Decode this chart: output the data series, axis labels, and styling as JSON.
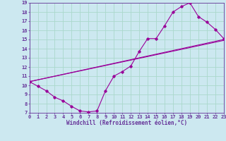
{
  "xlabel": "Windchill (Refroidissement éolien,°C)",
  "bg_color": "#cce8f0",
  "line_color": "#990099",
  "grid_color": "#aad8cc",
  "axis_color": "#663399",
  "xmin": 0,
  "xmax": 23,
  "ymin": 7,
  "ymax": 19,
  "line1_x": [
    0,
    1,
    2,
    3,
    4,
    5,
    6,
    7,
    8,
    9,
    10,
    11,
    12,
    13,
    14,
    15,
    16,
    17,
    18,
    19,
    20,
    21,
    22,
    23
  ],
  "line1_y": [
    10.4,
    9.9,
    9.4,
    8.7,
    8.3,
    7.7,
    7.2,
    7.1,
    7.2,
    9.4,
    11.0,
    11.5,
    12.1,
    13.7,
    15.1,
    15.1,
    16.5,
    18.0,
    18.6,
    19.0,
    17.5,
    16.9,
    16.1,
    15.1
  ],
  "line2_x": [
    0,
    23
  ],
  "line2_y": [
    10.4,
    15.0
  ],
  "line3_x": [
    0,
    23
  ],
  "line3_y": [
    10.4,
    14.9
  ],
  "xlabel_fontsize": 5.5,
  "tick_fontsize": 5.0
}
